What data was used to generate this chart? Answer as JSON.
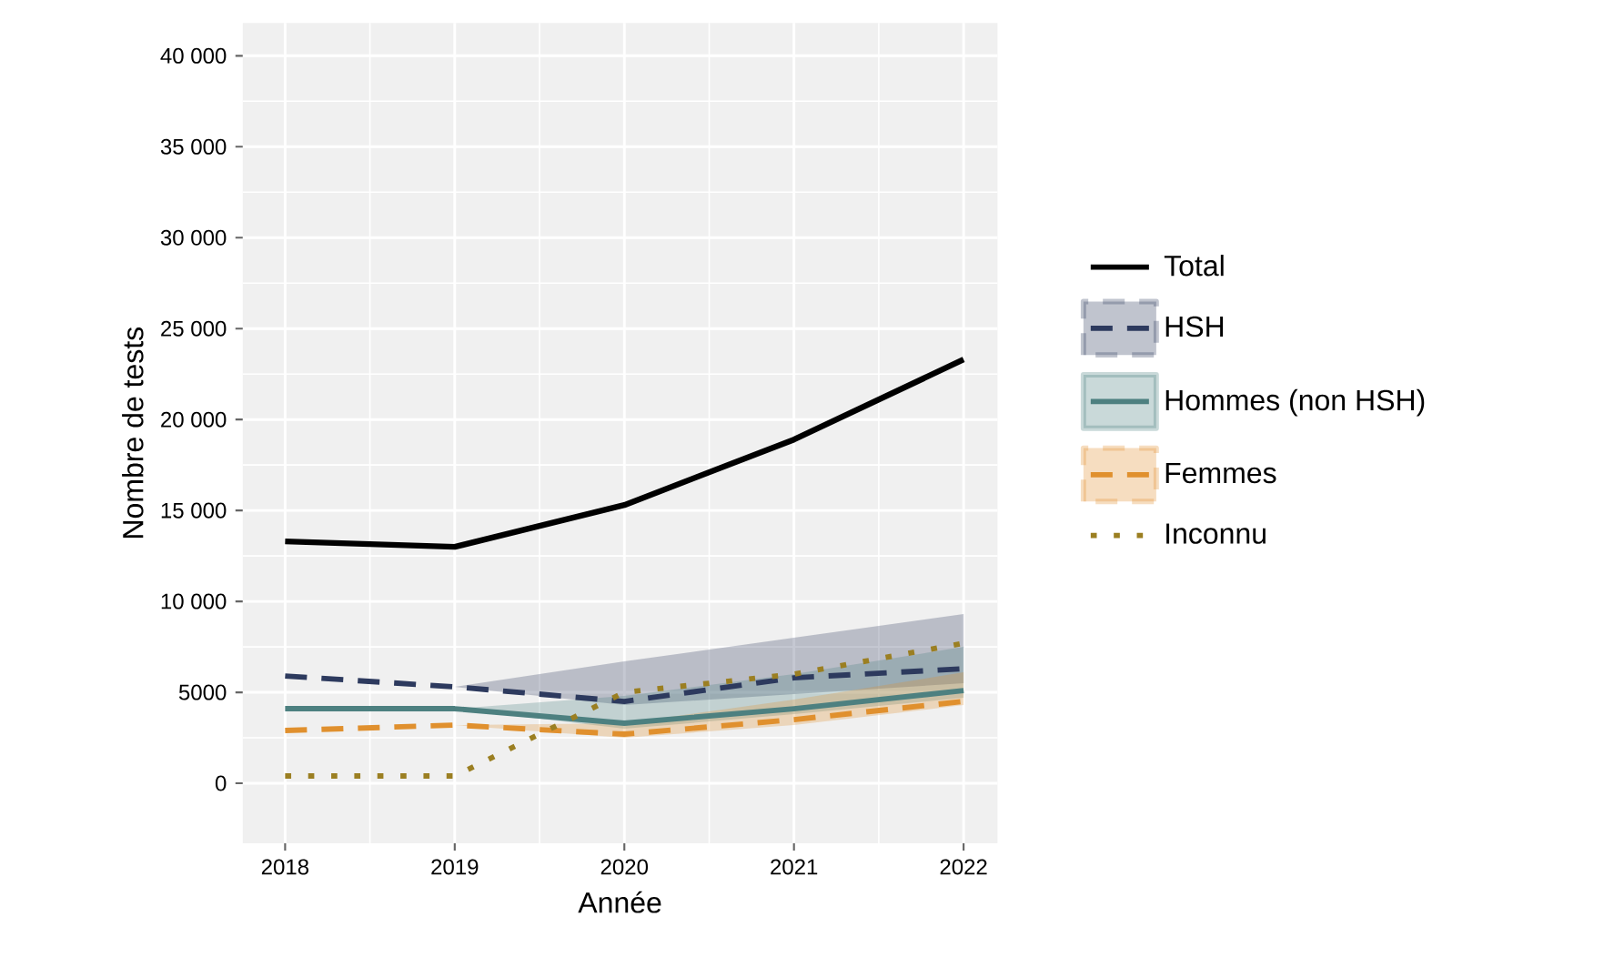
{
  "chart_data": {
    "type": "line",
    "xlabel": "Année",
    "ylabel": "Nombre de tests",
    "x": [
      2018,
      2019,
      2020,
      2021,
      2022
    ],
    "series": [
      {
        "name": "Total",
        "color": "#000000",
        "line_style": "solid",
        "values": [
          13300,
          13000,
          15300,
          18900,
          23300
        ]
      },
      {
        "name": "HSH",
        "color": "#2d3a5e",
        "line_style": "dashed",
        "values": [
          5900,
          5300,
          4500,
          5800,
          6300
        ],
        "lower": [
          null,
          5300,
          4300,
          4900,
          5500
        ],
        "upper": [
          null,
          5300,
          6700,
          8000,
          9300
        ]
      },
      {
        "name": "Hommes (non HSH)",
        "color": "#4d8080",
        "line_style": "solid",
        "values": [
          4100,
          4100,
          3300,
          4100,
          5100
        ],
        "lower": [
          null,
          4100,
          3000,
          3800,
          4700
        ],
        "upper": [
          null,
          4100,
          4800,
          6000,
          7500
        ]
      },
      {
        "name": "Femmes",
        "color": "#e0902e",
        "line_style": "dashed",
        "values": [
          2900,
          3200,
          2700,
          3500,
          4500
        ],
        "lower": [
          null,
          3200,
          2500,
          3200,
          4300
        ],
        "upper": [
          null,
          3200,
          3300,
          4600,
          6100
        ]
      },
      {
        "name": "Inconnu",
        "color": "#9b7f22",
        "line_style": "dotted",
        "values": [
          400,
          400,
          5000,
          6000,
          7700
        ]
      }
    ],
    "xlim": [
      2017.75,
      2022.2
    ],
    "ylim": [
      -3300,
      41800
    ],
    "xticks": [
      2018,
      2019,
      2020,
      2021,
      2022
    ],
    "yticks": [
      {
        "value": 0,
        "label": "0"
      },
      {
        "value": 5000,
        "label": "5000"
      },
      {
        "value": 10000,
        "label": "10 000"
      },
      {
        "value": 15000,
        "label": "15 000"
      },
      {
        "value": 20000,
        "label": "20 000"
      },
      {
        "value": 25000,
        "label": "25 000"
      },
      {
        "value": 30000,
        "label": "30 000"
      },
      {
        "value": 35000,
        "label": "35 000"
      },
      {
        "value": 40000,
        "label": "40 000"
      }
    ],
    "grid": true,
    "legend": "right"
  }
}
